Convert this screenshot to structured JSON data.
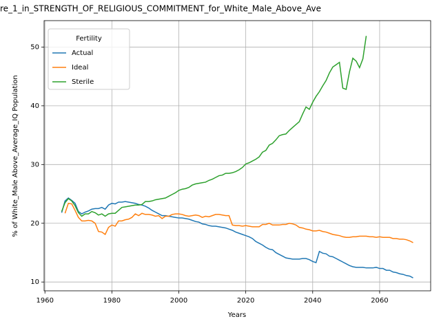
{
  "chart_data": {
    "type": "line",
    "title": "re_1_in_STRENGTH_OF_RELIGIOUS_COMMITMENT_for_White_Male_Above_Ave",
    "xlabel": "Years",
    "ylabel": "% of White_Male Above_Average_IQ Population",
    "legend_title": "Fertility",
    "legend": "upper left",
    "grid": true,
    "xlim": [
      1959.75,
      2075.25
    ],
    "xticks": [
      1960,
      1980,
      2000,
      2020,
      2040,
      2060
    ],
    "ylim": [
      8.5,
      54.5
    ],
    "yticks": [
      10,
      20,
      30,
      40,
      50
    ],
    "x": [
      1965,
      1966,
      1967,
      1968,
      1969,
      1970,
      1971,
      1972,
      1973,
      1974,
      1975,
      1976,
      1977,
      1978,
      1979,
      1980,
      1981,
      1982,
      1983,
      1984,
      1985,
      1986,
      1987,
      1988,
      1989,
      1990,
      1991,
      1992,
      1993,
      1994,
      1995,
      1996,
      1997,
      1998,
      1999,
      2000,
      2001,
      2002,
      2003,
      2004,
      2005,
      2006,
      2007,
      2008,
      2009,
      2010,
      2011,
      2012,
      2013,
      2014,
      2015,
      2016,
      2017,
      2018,
      2019,
      2020,
      2021,
      2022,
      2023,
      2024,
      2025,
      2026,
      2027,
      2028,
      2029,
      2030,
      2031,
      2032,
      2033,
      2034,
      2035,
      2036,
      2037,
      2038,
      2039,
      2040,
      2041,
      2042,
      2043,
      2044,
      2045,
      2046,
      2047,
      2048,
      2049,
      2050,
      2051,
      2052,
      2053,
      2054,
      2055,
      2056,
      2057,
      2058,
      2059,
      2060,
      2061,
      2062,
      2063,
      2064,
      2065,
      2066,
      2067,
      2068,
      2069,
      2070
    ],
    "series": [
      {
        "name": "Actual",
        "color": "#1f77b4",
        "values": [
          21.8,
          23.8,
          24.3,
          23.9,
          23.4,
          22.0,
          21.6,
          21.9,
          22.1,
          22.4,
          22.5,
          22.5,
          22.7,
          22.4,
          23.1,
          23.4,
          23.3,
          23.6,
          23.6,
          23.7,
          23.6,
          23.5,
          23.4,
          23.2,
          23.1,
          22.9,
          22.6,
          22.2,
          21.9,
          21.6,
          21.3,
          21.3,
          21.2,
          21.1,
          21.0,
          20.9,
          20.9,
          20.8,
          20.7,
          20.5,
          20.3,
          20.2,
          19.9,
          19.8,
          19.6,
          19.5,
          19.5,
          19.4,
          19.3,
          19.2,
          19.0,
          18.8,
          18.5,
          18.3,
          18.1,
          17.9,
          17.7,
          17.4,
          16.9,
          16.6,
          16.3,
          15.9,
          15.6,
          15.5,
          15.0,
          14.7,
          14.4,
          14.1,
          14.0,
          13.9,
          13.9,
          13.9,
          14.0,
          14.0,
          13.8,
          13.5,
          13.3,
          15.2,
          14.9,
          14.8,
          14.4,
          14.3,
          14.0,
          13.7,
          13.4,
          13.1,
          12.8,
          12.6,
          12.5,
          12.5,
          12.5,
          12.4,
          12.4,
          12.4,
          12.5,
          12.3,
          12.3,
          12.0,
          12.0,
          11.7,
          11.6,
          11.4,
          11.3,
          11.1,
          11.0,
          10.7
        ]
      },
      {
        "name": "Ideal",
        "color": "#ff7f0e",
        "values": [
          null,
          21.7,
          23.4,
          23.3,
          22.2,
          21.0,
          20.4,
          20.4,
          20.5,
          20.4,
          20.0,
          18.6,
          18.5,
          18.1,
          19.3,
          19.7,
          19.5,
          20.4,
          20.4,
          20.6,
          20.7,
          21.0,
          21.6,
          21.3,
          21.7,
          21.5,
          21.5,
          21.4,
          21.2,
          21.3,
          20.8,
          21.2,
          21.2,
          21.5,
          21.6,
          21.6,
          21.5,
          21.3,
          21.2,
          21.3,
          21.4,
          21.3,
          21.0,
          21.2,
          21.1,
          21.3,
          21.5,
          21.5,
          21.4,
          21.3,
          21.3,
          19.7,
          19.6,
          19.6,
          19.5,
          19.6,
          19.5,
          19.4,
          19.4,
          19.4,
          19.8,
          19.8,
          20.0,
          19.7,
          19.7,
          19.7,
          19.8,
          19.8,
          20.0,
          19.9,
          19.7,
          19.3,
          19.2,
          19.0,
          18.9,
          18.7,
          18.7,
          18.8,
          18.6,
          18.5,
          18.3,
          18.1,
          18.0,
          17.9,
          17.7,
          17.6,
          17.6,
          17.7,
          17.7,
          17.8,
          17.8,
          17.8,
          17.7,
          17.7,
          17.6,
          17.7,
          17.6,
          17.6,
          17.6,
          17.4,
          17.4,
          17.3,
          17.3,
          17.2,
          17.0,
          16.7
        ]
      },
      {
        "name": "Sterile",
        "color": "#2ca02c",
        "values": [
          22.0,
          23.5,
          24.2,
          23.8,
          23.0,
          21.8,
          21.2,
          21.6,
          21.6,
          22.0,
          21.8,
          21.4,
          21.6,
          21.2,
          21.6,
          21.7,
          21.7,
          22.2,
          22.7,
          22.8,
          22.9,
          23.0,
          23.1,
          23.1,
          23.2,
          23.7,
          23.7,
          23.8,
          24.0,
          24.1,
          24.2,
          24.3,
          24.6,
          24.9,
          25.2,
          25.6,
          25.8,
          25.9,
          26.1,
          26.5,
          26.7,
          26.8,
          26.9,
          27.0,
          27.3,
          27.5,
          27.8,
          28.1,
          28.2,
          28.5,
          28.5,
          28.6,
          28.8,
          29.1,
          29.5,
          30.1,
          30.3,
          30.6,
          30.9,
          31.3,
          32.1,
          32.4,
          33.3,
          33.6,
          34.2,
          34.9,
          35.1,
          35.2,
          35.8,
          36.3,
          36.8,
          37.3,
          38.6,
          39.8,
          39.4,
          40.6,
          41.6,
          42.4,
          43.4,
          44.3,
          45.6,
          46.6,
          47.0,
          47.4,
          43.0,
          42.8,
          45.8,
          48.1,
          47.6,
          46.5,
          48.0,
          51.9,
          null,
          null,
          null,
          null,
          null,
          null,
          null,
          null,
          null,
          null,
          null,
          null,
          null,
          null
        ]
      }
    ]
  }
}
